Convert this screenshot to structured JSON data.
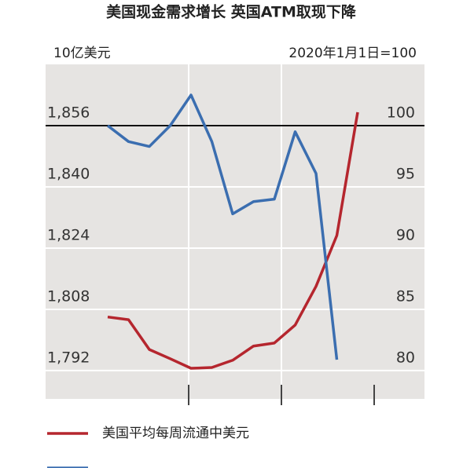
{
  "chart_data": {
    "type": "line",
    "title": "美国现金需求增长 英国ATM取现下降",
    "ylabel": "10亿美元",
    "y2label": "2020年1月1日=100",
    "categories": [
      null,
      null,
      null,
      null,
      null,
      null,
      null,
      null,
      null,
      null,
      null,
      null,
      null
    ],
    "ylim": [
      1784.6,
      1872
    ],
    "yticks": [
      {
        "value": 1792,
        "label": "1,792"
      },
      {
        "value": 1808,
        "label": "1,808"
      },
      {
        "value": 1824,
        "label": "1,824"
      },
      {
        "value": 1840,
        "label": "1,840"
      },
      {
        "value": 1856,
        "label": "1,856"
      }
    ],
    "y2lim": [
      77.7,
      105
    ],
    "y2ticks": [
      80,
      85,
      90,
      95,
      100
    ],
    "grid": true,
    "series": [
      {
        "name": "美国平均每周流通中美元",
        "color": "#b5262e",
        "values": [
          1806.0,
          1805.3,
          1797.5,
          1795.1,
          1792.6,
          1792.8,
          1794.7,
          1798.4,
          1799.2,
          1803.9,
          1814.0,
          1827.3,
          1859.5
        ]
      },
      {
        "color": "#3b6eb0",
        "axis": "y2",
        "values": [
          100,
          98.7,
          98.3,
          100,
          102.5,
          98.7,
          92.8,
          93.8,
          94.0,
          99.5,
          96.1,
          80.9,
          null
        ]
      }
    ]
  }
}
